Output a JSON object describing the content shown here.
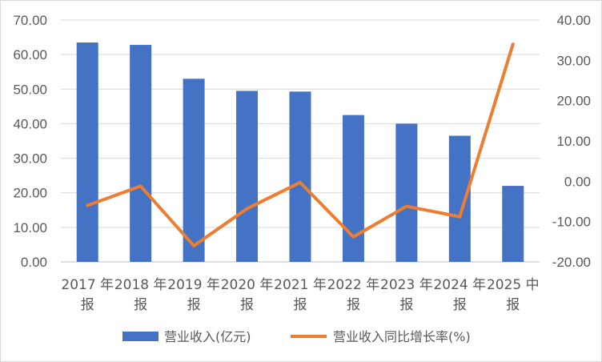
{
  "chart_data": {
    "type": "bar+line",
    "categories": [
      [
        "2017 年",
        "报"
      ],
      [
        "2018 年",
        "报"
      ],
      [
        "2019 年",
        "报"
      ],
      [
        "2020 年",
        "报"
      ],
      [
        "2021 年",
        "报"
      ],
      [
        "2022 年",
        "报"
      ],
      [
        "2023 年",
        "报"
      ],
      [
        "2024 年",
        "报"
      ],
      [
        "2025 中",
        "报"
      ]
    ],
    "series": [
      {
        "name": "营业收入(亿元)",
        "type": "bar",
        "axis": "left",
        "color": "#4472C4",
        "values": [
          63.5,
          62.8,
          53.0,
          49.5,
          49.3,
          42.5,
          40.0,
          36.5,
          22.0
        ]
      },
      {
        "name": "营业收入同比增长率(%)",
        "type": "line",
        "axis": "right",
        "color": "#ED7D31",
        "values": [
          -6.0,
          -1.2,
          -16.0,
          -6.8,
          -0.3,
          -13.8,
          -6.2,
          -8.8,
          34.0
        ]
      }
    ],
    "y_left": {
      "min": 0,
      "max": 70,
      "step": 10,
      "tick_labels": [
        "0.00",
        "10.00",
        "20.00",
        "30.00",
        "40.00",
        "50.00",
        "60.00",
        "70.00"
      ]
    },
    "y_right": {
      "min": -20,
      "max": 40,
      "step": 10,
      "tick_labels": [
        "-20.00",
        "-10.00",
        "0.00",
        "10.00",
        "20.00",
        "30.00",
        "40.00"
      ]
    },
    "grid": true,
    "legend_position": "bottom"
  }
}
